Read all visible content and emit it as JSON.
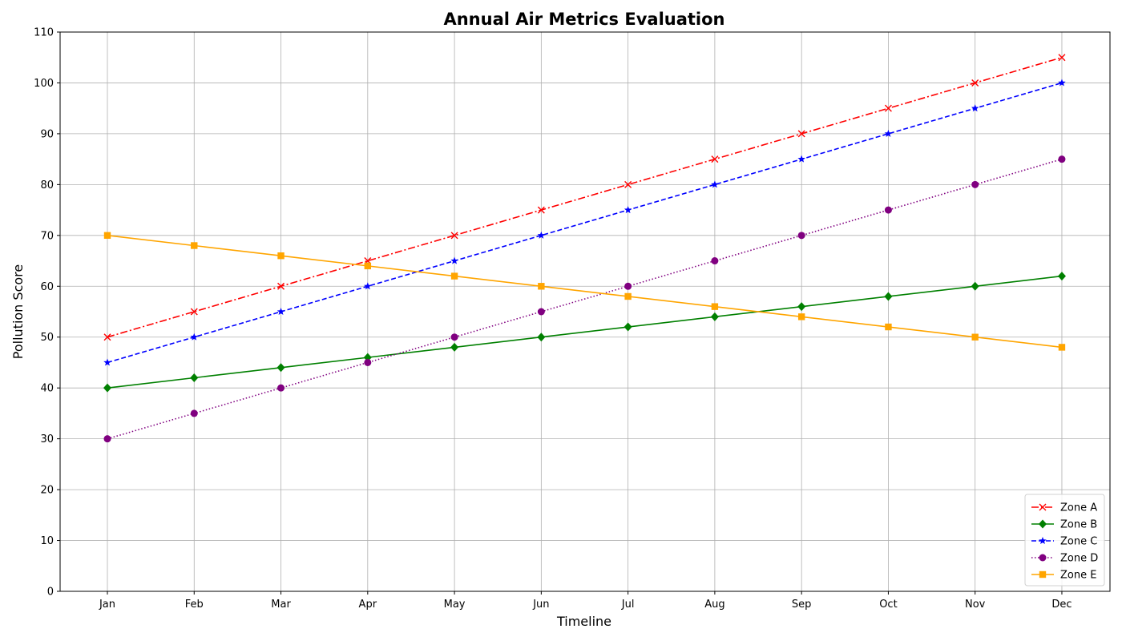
{
  "chart_data": {
    "type": "line",
    "title": "Annual Air Metrics Evaluation",
    "xlabel": "Timeline",
    "ylabel": "Pollution Score",
    "ylim": [
      0,
      110
    ],
    "yticks": [
      0,
      10,
      20,
      30,
      40,
      50,
      60,
      70,
      80,
      90,
      100,
      110
    ],
    "grid": true,
    "legend_position": "bottom-right",
    "categories": [
      "Jan",
      "Feb",
      "Mar",
      "Apr",
      "May",
      "Jun",
      "Jul",
      "Aug",
      "Sep",
      "Oct",
      "Nov",
      "Dec"
    ],
    "series": [
      {
        "name": "Zone A",
        "color": "#ff0000",
        "line_style": "dashdot",
        "marker": "x",
        "values": [
          50,
          55,
          60,
          65,
          70,
          75,
          80,
          85,
          90,
          95,
          100,
          105
        ]
      },
      {
        "name": "Zone B",
        "color": "#008000",
        "line_style": "solid",
        "marker": "diamond",
        "values": [
          40,
          42,
          44,
          46,
          48,
          50,
          52,
          54,
          56,
          58,
          60,
          62
        ]
      },
      {
        "name": "Zone C",
        "color": "#0000ff",
        "line_style": "dashed",
        "marker": "star",
        "values": [
          45,
          50,
          55,
          60,
          65,
          70,
          75,
          80,
          85,
          90,
          95,
          100
        ]
      },
      {
        "name": "Zone D",
        "color": "#800080",
        "line_style": "dotted",
        "marker": "circle",
        "values": [
          30,
          35,
          40,
          45,
          50,
          55,
          60,
          65,
          70,
          75,
          80,
          85
        ]
      },
      {
        "name": "Zone E",
        "color": "#ffa500",
        "line_style": "solid",
        "marker": "square",
        "values": [
          70,
          68,
          66,
          64,
          62,
          60,
          58,
          56,
          54,
          52,
          50,
          48
        ]
      }
    ]
  }
}
